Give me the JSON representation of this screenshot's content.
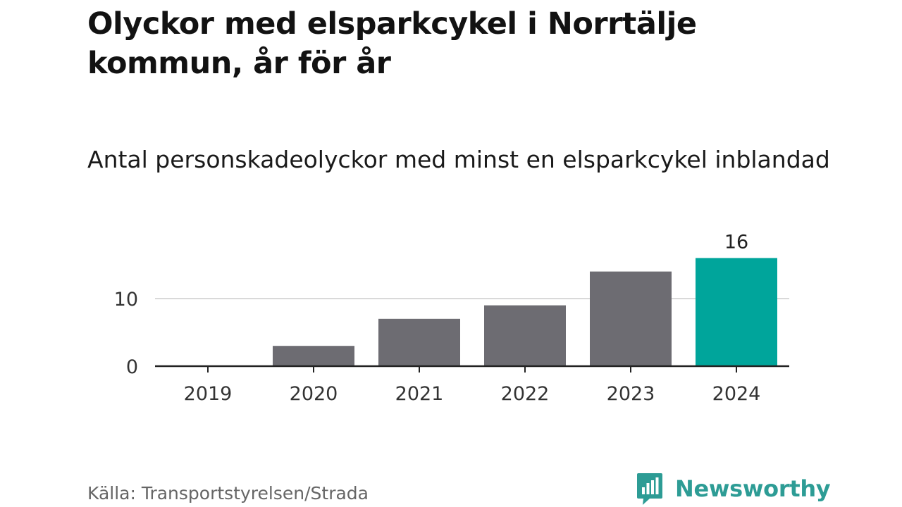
{
  "header": {
    "title": "Olyckor med elsparkcykel i Norrtälje kommun, år för år",
    "subtitle": "Antal personskadeolyckor med minst en elsparkcykel inblandad"
  },
  "chart_data": {
    "type": "bar",
    "title": "Olyckor med elsparkcykel i Norrtälje kommun, år för år",
    "subtitle": "Antal personskadeolyckor med minst en elsparkcykel inblandad",
    "categories": [
      "2019",
      "2020",
      "2021",
      "2022",
      "2023",
      "2024"
    ],
    "values": [
      0,
      3,
      7,
      9,
      14,
      16
    ],
    "yticks": [
      0,
      10
    ],
    "ylim": [
      0,
      16
    ],
    "grid": true,
    "highlight_index": 5,
    "data_labels": [
      {
        "index": 5,
        "text": "16"
      }
    ],
    "colors": {
      "bar": "#6d6c72",
      "highlight": "#00a59b",
      "grid": "#d9d9d9",
      "axis": "#222222"
    }
  },
  "footer": {
    "source": "Källa: Transportstyrelsen/Strada",
    "brand": "Newsworthy",
    "brand_icon": "newsworthy-chart-bubble-icon",
    "brand_color": "#2d9c95"
  }
}
